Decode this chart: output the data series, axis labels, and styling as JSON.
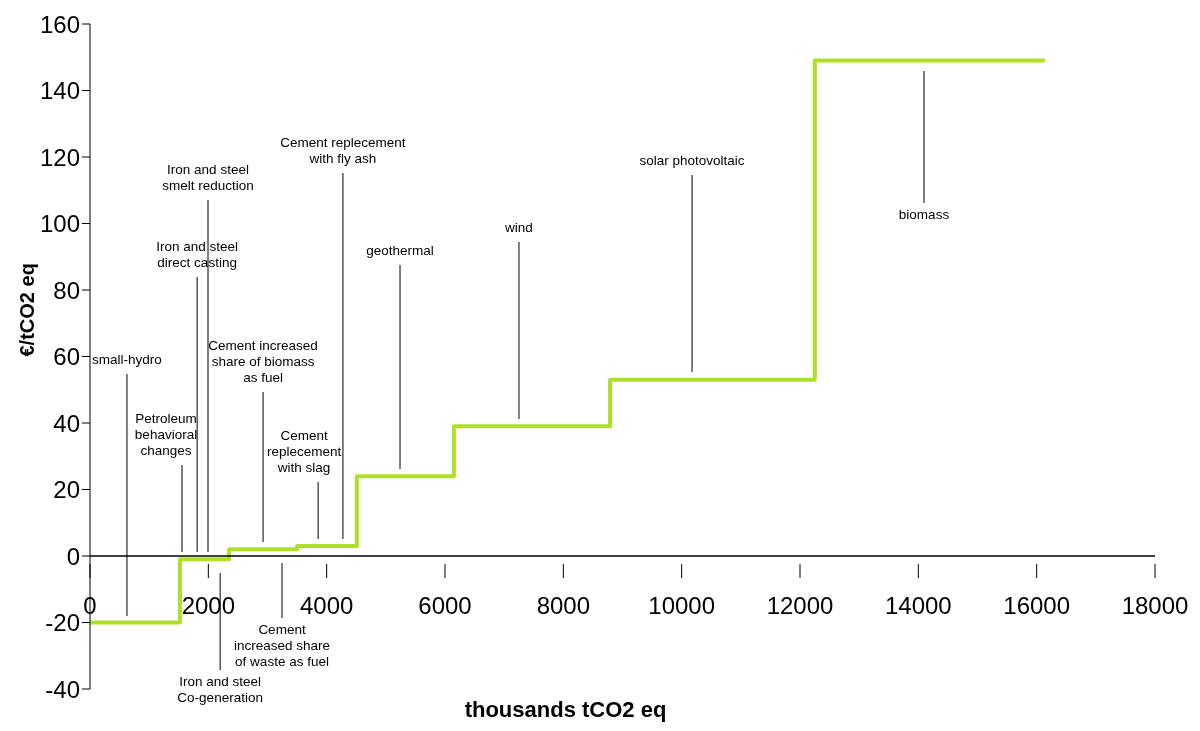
{
  "chart_data": {
    "type": "step",
    "xlabel": "thousands tCO2 eq",
    "ylabel": "€/tCO2 eq",
    "x": [
      0,
      1520,
      2350,
      3500,
      4510,
      6150,
      8790,
      12250,
      16140
    ],
    "series": [
      {
        "color": "#aee02a",
        "values": [
          -20,
          -1,
          2,
          3,
          24,
          39,
          53,
          149,
          149
        ]
      }
    ],
    "xlim": [
      0,
      18000
    ],
    "xticks": [
      0,
      2000,
      4000,
      6000,
      8000,
      10000,
      12000,
      14000,
      16000,
      18000
    ],
    "ylim": [
      -40,
      160
    ],
    "yticks": [
      -40,
      -20,
      0,
      20,
      40,
      60,
      80,
      100,
      120,
      140,
      160
    ],
    "grid": false,
    "legend": false,
    "marker": "none",
    "line_style": "solid",
    "annotations": [
      "small-hydro",
      "Petroleum\nbehavioral\nchanges",
      "Iron and steel\ndirect casting",
      "Iron and steel\nsmelt reduction",
      "Iron and steel\nCo-generation",
      "Cement increased\nshare of biomass\nas fuel",
      "Cement\nincreased share\nof waste as fuel",
      "Cement\nreplecement\nwith slag",
      "Cement replecement\nwith fly ash",
      "geothermal",
      "wind",
      "solar photovoltaic",
      "biomass"
    ]
  }
}
